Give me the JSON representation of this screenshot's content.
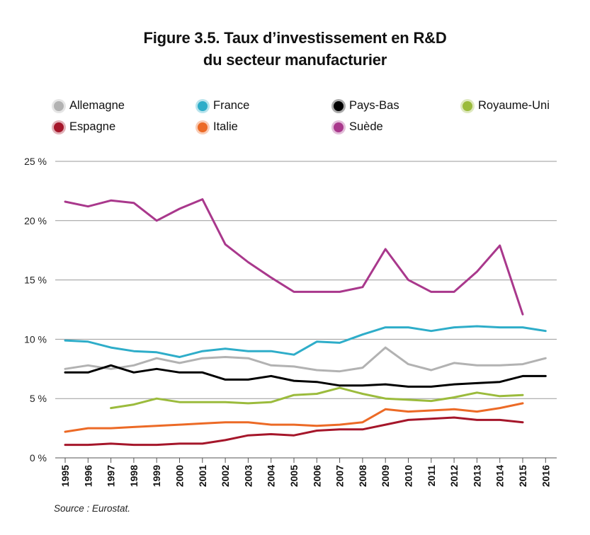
{
  "title": {
    "line1": "Figure 3.5. Taux d’investissement en R&D",
    "line2": "du secteur manufacturier"
  },
  "source": "Source : Eurostat.",
  "chart_data": {
    "type": "line",
    "x": [
      1995,
      1996,
      1997,
      1998,
      1999,
      2000,
      2001,
      2002,
      2003,
      2004,
      2005,
      2006,
      2007,
      2008,
      2009,
      2010,
      2011,
      2012,
      2013,
      2014,
      2015,
      2016
    ],
    "x_tick_labels": [
      "1995",
      "1996",
      "1997",
      "1998",
      "1999",
      "2000",
      "2001",
      "2002",
      "2003",
      "2004",
      "2005",
      "2006",
      "2007",
      "2008",
      "2009",
      "2010",
      "2011",
      "2012",
      "2013",
      "2014",
      "2015",
      "2016"
    ],
    "ylim": [
      0,
      25
    ],
    "y_ticks": [
      0,
      5,
      10,
      15,
      20,
      25
    ],
    "y_tick_labels": [
      "0 %",
      "5 %",
      "10 %",
      "15 %",
      "20 %",
      "25 %"
    ],
    "grid": "horizontal",
    "legend_position": "top",
    "series": [
      {
        "name": "Allemagne",
        "color": "#b2b2b2",
        "values": [
          7.5,
          7.8,
          7.5,
          7.8,
          8.4,
          8.0,
          8.4,
          8.5,
          8.4,
          7.8,
          7.7,
          7.4,
          7.3,
          7.6,
          9.3,
          7.9,
          7.4,
          8.0,
          7.8,
          7.8,
          7.9,
          8.4
        ]
      },
      {
        "name": "France",
        "color": "#2eadc9",
        "values": [
          9.9,
          9.8,
          9.3,
          9.0,
          8.9,
          8.5,
          9.0,
          9.2,
          9.0,
          9.0,
          8.7,
          9.8,
          9.7,
          10.4,
          11.0,
          11.0,
          10.7,
          11.0,
          11.1,
          11.0,
          11.0,
          10.7
        ]
      },
      {
        "name": "Pays-Bas",
        "color": "#000000",
        "values": [
          7.2,
          7.2,
          7.8,
          7.2,
          7.5,
          7.2,
          7.2,
          6.6,
          6.6,
          6.9,
          6.5,
          6.4,
          6.1,
          6.1,
          6.2,
          6.0,
          6.0,
          6.2,
          6.3,
          6.4,
          6.9,
          6.9
        ]
      },
      {
        "name": "Royaume-Uni",
        "color": "#9bbb3c",
        "values": [
          null,
          null,
          4.2,
          4.5,
          5.0,
          4.7,
          4.7,
          4.7,
          4.6,
          4.7,
          5.3,
          5.4,
          5.9,
          5.4,
          5.0,
          4.9,
          4.8,
          5.1,
          5.5,
          5.2,
          5.3,
          null
        ]
      },
      {
        "name": "Espagne",
        "color": "#a5162a",
        "values": [
          1.1,
          1.1,
          1.2,
          1.1,
          1.1,
          1.2,
          1.2,
          1.5,
          1.9,
          2.0,
          1.9,
          2.3,
          2.4,
          2.4,
          2.8,
          3.2,
          3.3,
          3.4,
          3.2,
          3.2,
          3.0,
          null
        ]
      },
      {
        "name": "Italie",
        "color": "#ec6a26",
        "values": [
          2.2,
          2.5,
          2.5,
          2.6,
          2.7,
          2.8,
          2.9,
          3.0,
          3.0,
          2.8,
          2.8,
          2.7,
          2.8,
          3.0,
          4.1,
          3.9,
          4.0,
          4.1,
          3.9,
          4.2,
          4.6,
          null
        ]
      },
      {
        "name": "Suède",
        "color": "#a9388c",
        "values": [
          21.6,
          21.2,
          21.7,
          21.5,
          20.0,
          21.0,
          21.8,
          18.0,
          16.5,
          15.2,
          14.0,
          14.0,
          14.0,
          14.4,
          17.6,
          15.0,
          14.0,
          14.0,
          15.7,
          17.9,
          12.1,
          null
        ]
      }
    ]
  }
}
